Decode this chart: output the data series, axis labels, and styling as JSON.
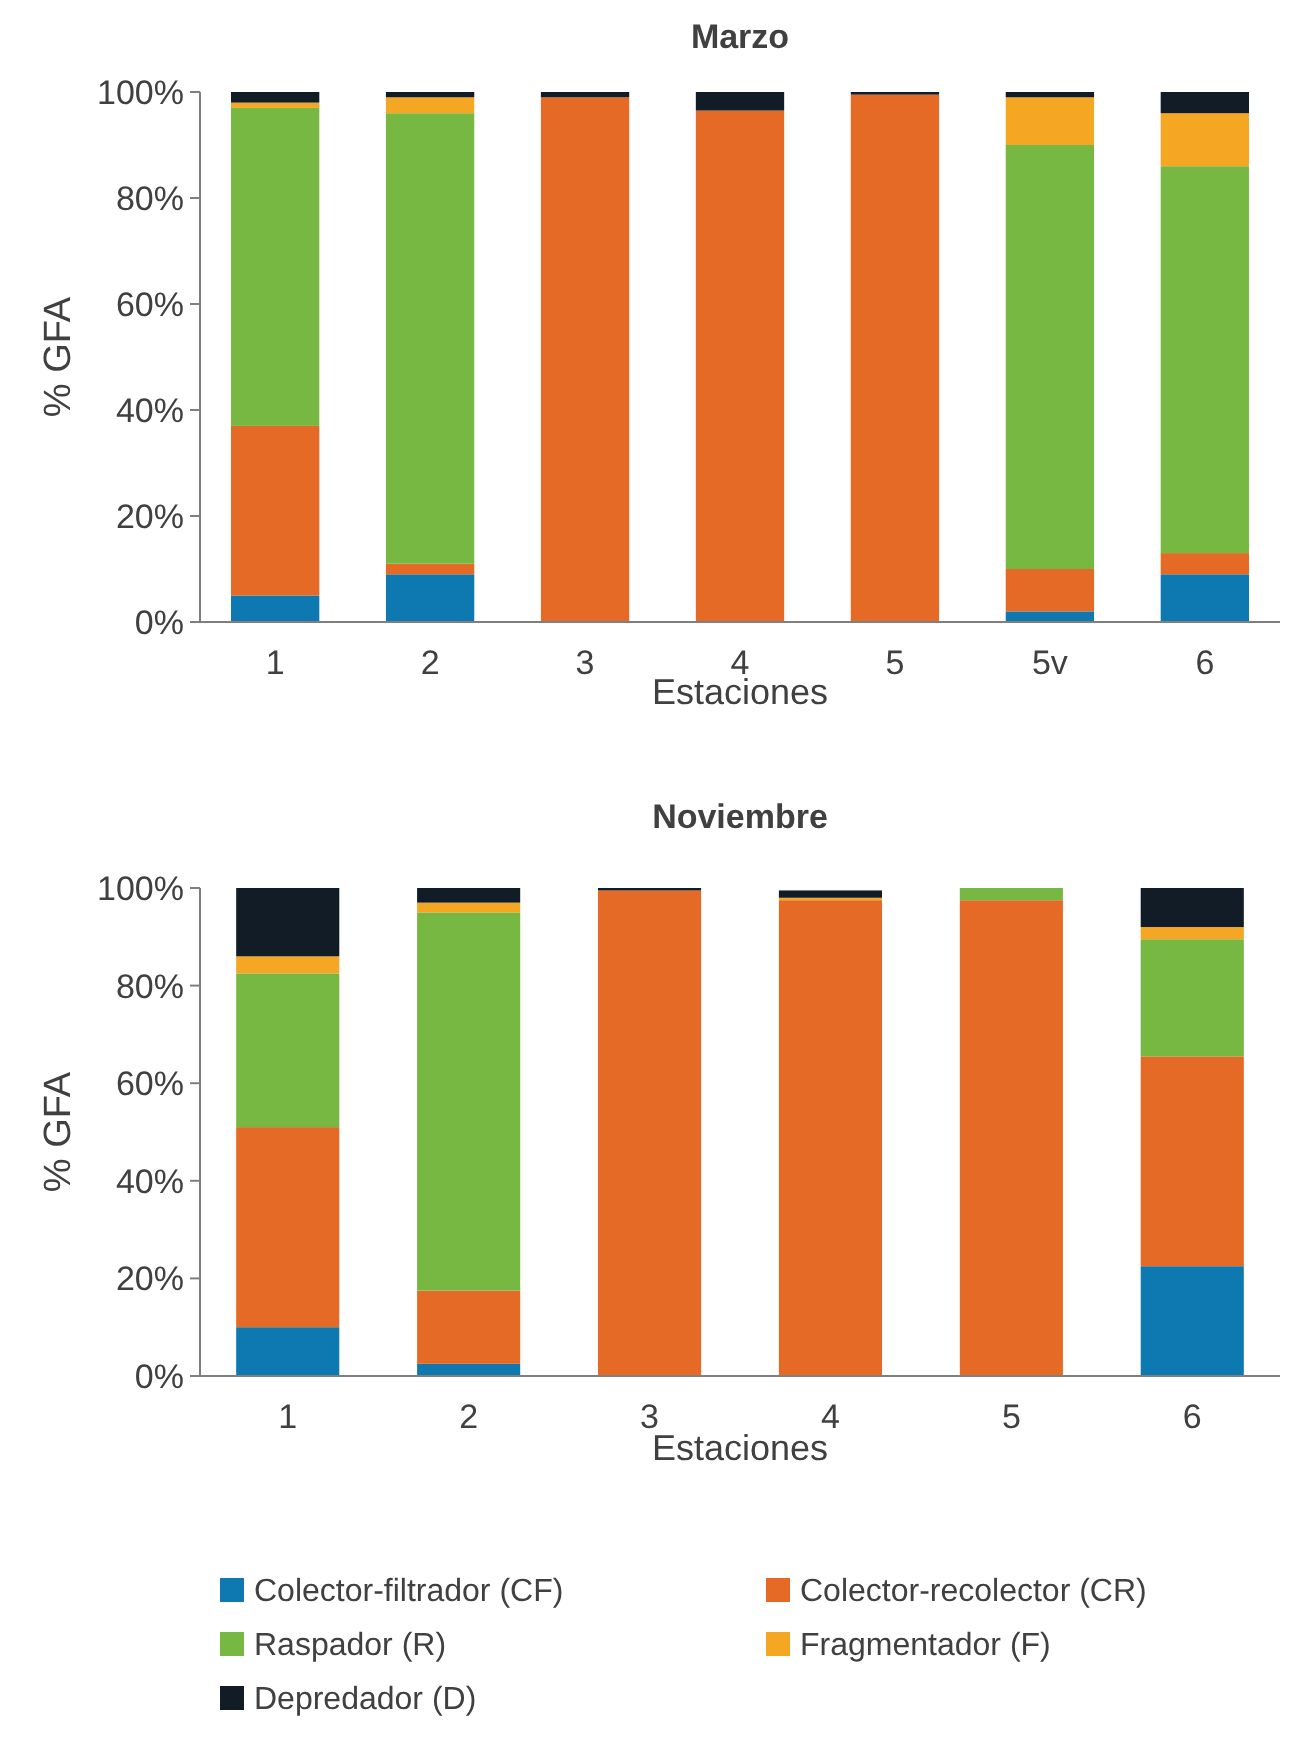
{
  "chart_data": [
    {
      "type": "bar",
      "stacked": true,
      "title": "Marzo",
      "xlabel": "Estaciones",
      "ylabel": "% GFA",
      "categories": [
        "1",
        "2",
        "3",
        "4",
        "5",
        "5v",
        "6"
      ],
      "ylim": [
        0,
        100
      ],
      "yticks": [
        {
          "value": 0,
          "label": "0%"
        },
        {
          "value": 20,
          "label": "20%"
        },
        {
          "value": 40,
          "label": "40%"
        },
        {
          "value": 60,
          "label": "60%"
        },
        {
          "value": 80,
          "label": "80%"
        },
        {
          "value": 100,
          "label": "100%"
        }
      ],
      "grid": false,
      "legend": false,
      "series": [
        {
          "color": "#0e78b0",
          "values": [
            5,
            9,
            0,
            0,
            0,
            2,
            9
          ]
        },
        {
          "color": "#e46a25",
          "values": [
            32,
            2,
            99,
            96.5,
            99.5,
            8,
            4
          ]
        },
        {
          "color": "#77b843",
          "values": [
            60,
            85,
            0,
            0,
            0,
            80,
            73
          ]
        },
        {
          "color": "#f5a623",
          "values": [
            1,
            3,
            0,
            0,
            0,
            9,
            10
          ]
        },
        {
          "color": "#111c27",
          "values": [
            2,
            1,
            1,
            3.5,
            0.5,
            1,
            4
          ]
        }
      ]
    },
    {
      "type": "bar",
      "stacked": true,
      "title": "Noviembre",
      "xlabel": "Estaciones",
      "ylabel": "% GFA",
      "categories": [
        "1",
        "2",
        "3",
        "4",
        "5",
        "6"
      ],
      "ylim": [
        0,
        100
      ],
      "yticks": [
        {
          "value": 0,
          "label": "0%"
        },
        {
          "value": 20,
          "label": "20%"
        },
        {
          "value": 40,
          "label": "40%"
        },
        {
          "value": 60,
          "label": "60%"
        },
        {
          "value": 80,
          "label": "80%"
        },
        {
          "value": 100,
          "label": "100%"
        }
      ],
      "grid": false,
      "legend": "bottom",
      "series": [
        {
          "name": "Colector-filtrador (CF)",
          "color": "#0e78b0",
          "values": [
            10,
            2.5,
            0,
            null,
            0,
            22.5
          ]
        },
        {
          "name": "Colector-recolector (CR)",
          "color": "#e46a25",
          "values": [
            41,
            15,
            99.5,
            97.5,
            97.5,
            43
          ]
        },
        {
          "name": "Raspador (R)",
          "color": "#77b843",
          "values": [
            31.5,
            77.5,
            0,
            0,
            2.5,
            24
          ]
        },
        {
          "name": "Fragmentador (F)",
          "color": "#f5a623",
          "values": [
            3.5,
            2,
            0,
            0.5,
            0,
            2.5
          ]
        },
        {
          "name": "Depredador (D)",
          "color": "#111c27",
          "values": [
            14,
            3,
            0.5,
            1.5,
            0,
            8
          ]
        }
      ]
    }
  ]
}
